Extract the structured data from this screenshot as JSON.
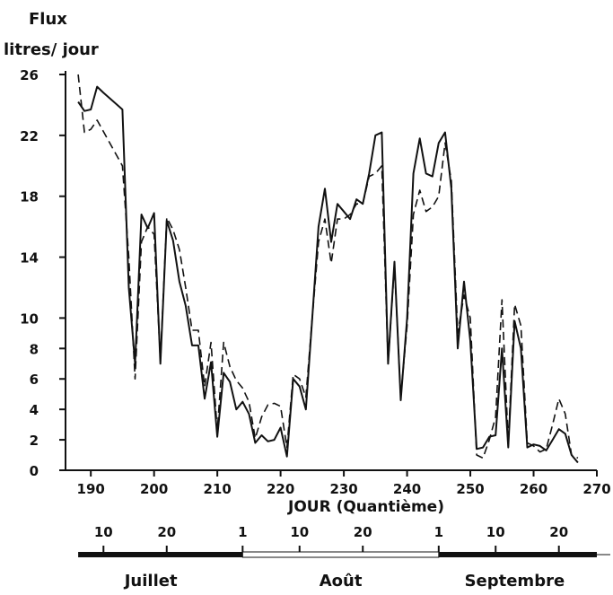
{
  "chart_data": {
    "type": "line",
    "ylabel_line1": "Flux",
    "ylabel_line2": "litres/ jour",
    "xlabel": "JOUR (Quantième)",
    "xlim": [
      186,
      270
    ],
    "ylim": [
      0,
      26
    ],
    "x_ticks": [
      190,
      200,
      210,
      220,
      230,
      240,
      250,
      260,
      270
    ],
    "y_ticks": [
      0,
      2,
      4,
      6,
      8,
      10,
      14,
      18,
      22,
      26
    ],
    "grid": false,
    "series": [
      {
        "style": "solid",
        "color": "#111111",
        "points": [
          [
            188,
            24.2
          ],
          [
            189,
            23.6
          ],
          [
            190,
            23.7
          ],
          [
            191,
            25.2
          ],
          [
            192,
            24.8
          ],
          [
            195,
            23.7
          ],
          [
            196,
            12.0
          ],
          [
            197,
            7.0
          ],
          [
            198,
            16.8
          ],
          [
            199,
            15.9
          ],
          [
            200,
            16.9
          ],
          [
            201,
            7.0
          ],
          [
            202,
            16.4
          ],
          [
            203,
            15.1
          ],
          [
            204,
            12.4
          ],
          [
            205,
            10.8
          ],
          [
            206,
            8.2
          ],
          [
            207,
            8.2
          ],
          [
            208,
            4.7
          ],
          [
            209,
            7.1
          ],
          [
            210,
            2.2
          ],
          [
            211,
            6.4
          ],
          [
            212,
            5.8
          ],
          [
            213,
            4.0
          ],
          [
            214,
            4.5
          ],
          [
            215,
            3.7
          ],
          [
            216,
            1.8
          ],
          [
            217,
            2.3
          ],
          [
            218,
            1.9
          ],
          [
            219,
            2.0
          ],
          [
            220,
            2.8
          ],
          [
            221,
            0.9
          ],
          [
            222,
            6.0
          ],
          [
            223,
            5.5
          ],
          [
            224,
            4.0
          ],
          [
            225,
            10.0
          ],
          [
            226,
            16.0
          ],
          [
            227,
            18.5
          ],
          [
            228,
            15.0
          ],
          [
            229,
            17.5
          ],
          [
            230,
            17.0
          ],
          [
            231,
            16.5
          ],
          [
            232,
            17.8
          ],
          [
            233,
            17.5
          ],
          [
            234,
            19.5
          ],
          [
            235,
            22.0
          ],
          [
            236,
            22.2
          ],
          [
            237,
            7.0
          ],
          [
            238,
            13.7
          ],
          [
            239,
            4.6
          ],
          [
            240,
            10.0
          ],
          [
            241,
            19.5
          ],
          [
            242,
            21.8
          ],
          [
            243,
            19.5
          ],
          [
            244,
            19.3
          ],
          [
            245,
            21.5
          ],
          [
            246,
            22.2
          ],
          [
            247,
            18.5
          ],
          [
            248,
            8.0
          ],
          [
            249,
            12.4
          ],
          [
            250,
            8.5
          ],
          [
            251,
            1.4
          ],
          [
            252,
            1.5
          ],
          [
            253,
            2.2
          ],
          [
            254,
            2.3
          ],
          [
            255,
            8.0
          ],
          [
            256,
            1.5
          ],
          [
            257,
            9.8
          ],
          [
            258,
            8.0
          ],
          [
            259,
            1.5
          ],
          [
            260,
            1.7
          ],
          [
            261,
            1.6
          ],
          [
            262,
            1.3
          ],
          [
            263,
            2.0
          ],
          [
            264,
            2.7
          ],
          [
            265,
            2.4
          ],
          [
            266,
            1.0
          ],
          [
            267,
            0.5
          ]
        ]
      },
      {
        "style": "dashed",
        "color": "#111111",
        "points": [
          [
            188,
            26.0
          ],
          [
            189,
            22.2
          ],
          [
            190,
            22.4
          ],
          [
            191,
            23.0
          ],
          [
            195,
            20.0
          ],
          [
            196,
            14.0
          ],
          [
            197,
            6.0
          ],
          [
            198,
            15.0
          ],
          [
            199,
            16.0
          ],
          [
            200,
            15.5
          ],
          [
            201,
            7.2
          ],
          [
            202,
            16.6
          ],
          [
            203,
            15.8
          ],
          [
            204,
            14.5
          ],
          [
            205,
            12.0
          ],
          [
            206,
            9.2
          ],
          [
            207,
            9.2
          ],
          [
            208,
            5.5
          ],
          [
            209,
            8.4
          ],
          [
            210,
            2.6
          ],
          [
            211,
            8.4
          ],
          [
            212,
            6.8
          ],
          [
            213,
            5.9
          ],
          [
            214,
            5.4
          ],
          [
            215,
            4.5
          ],
          [
            216,
            2.1
          ],
          [
            217,
            3.5
          ],
          [
            218,
            4.3
          ],
          [
            219,
            4.4
          ],
          [
            220,
            4.2
          ],
          [
            221,
            1.5
          ],
          [
            222,
            6.3
          ],
          [
            223,
            6.0
          ],
          [
            224,
            4.8
          ],
          [
            225,
            10.0
          ],
          [
            226,
            15.0
          ],
          [
            227,
            16.5
          ],
          [
            228,
            13.6
          ],
          [
            229,
            16.5
          ],
          [
            230,
            16.5
          ],
          [
            231,
            16.8
          ],
          [
            232,
            17.5
          ],
          [
            233,
            17.5
          ],
          [
            234,
            19.3
          ],
          [
            235,
            19.5
          ],
          [
            236,
            20.0
          ],
          [
            237,
            7.0
          ],
          [
            238,
            13.5
          ],
          [
            239,
            4.8
          ],
          [
            240,
            9.5
          ],
          [
            241,
            16.8
          ],
          [
            242,
            18.4
          ],
          [
            243,
            17.0
          ],
          [
            244,
            17.3
          ],
          [
            245,
            18.0
          ],
          [
            246,
            21.5
          ],
          [
            247,
            19.0
          ],
          [
            248,
            9.0
          ],
          [
            249,
            11.5
          ],
          [
            250,
            10.0
          ],
          [
            251,
            1.0
          ],
          [
            252,
            0.8
          ],
          [
            253,
            2.0
          ],
          [
            254,
            3.5
          ],
          [
            255,
            11.2
          ],
          [
            256,
            1.8
          ],
          [
            257,
            10.9
          ],
          [
            258,
            9.5
          ],
          [
            259,
            1.8
          ],
          [
            260,
            1.6
          ],
          [
            261,
            1.2
          ],
          [
            262,
            1.4
          ],
          [
            263,
            3.0
          ],
          [
            264,
            4.7
          ],
          [
            265,
            3.7
          ],
          [
            266,
            1.0
          ],
          [
            267,
            0.8
          ]
        ]
      }
    ],
    "months": {
      "tick_labels": [
        "10",
        "20",
        "1",
        "10",
        "20",
        "1",
        "10",
        "20"
      ],
      "tick_days": [
        192,
        202,
        214,
        223,
        233,
        245,
        254,
        264
      ],
      "names": [
        "Juillet",
        "Août",
        "Septembre"
      ],
      "name_centers": [
        199.5,
        229.5,
        257.0
      ],
      "spans": [
        {
          "start": 188,
          "end": 214,
          "fill": "solid"
        },
        {
          "start": 214,
          "end": 245,
          "fill": "outline"
        },
        {
          "start": 245,
          "end": 270,
          "fill": "solid"
        }
      ]
    }
  }
}
